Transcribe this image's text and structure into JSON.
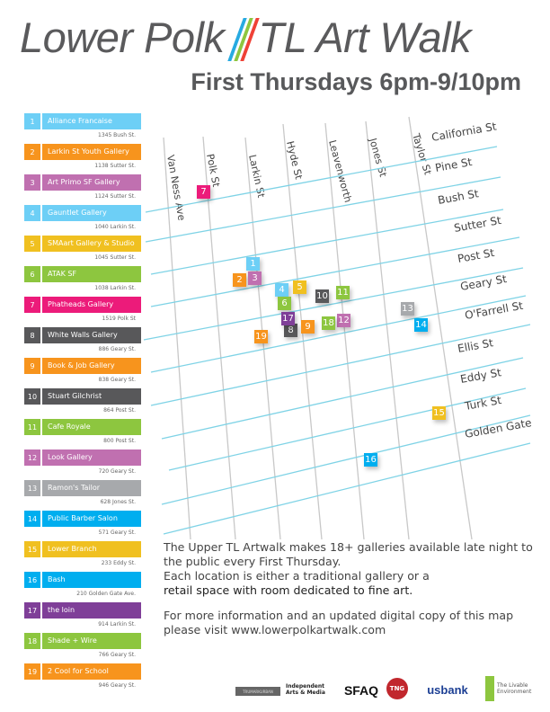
{
  "header": {
    "title_left": "Lower Polk",
    "title_right": "TL Art Walk",
    "slash_colors": [
      "#27aae1",
      "#8dc63f",
      "#ef4136"
    ],
    "subtitle": "First Thursdays 6pm-9/10pm"
  },
  "galleries": [
    {
      "num": "1",
      "name": "Alliance Francaise",
      "address": "1345 Bush St.",
      "color": "#6dcff6"
    },
    {
      "num": "2",
      "name": "Larkin St Youth Gallery",
      "address": "1138 Sutter St.",
      "color": "#f7941d"
    },
    {
      "num": "3",
      "name": "Art Primo SF Gallery",
      "address": "1124 Sutter St.",
      "color": "#c070b0"
    },
    {
      "num": "4",
      "name": "Gauntlet Gallery",
      "address": "1040 Larkin St.",
      "color": "#6dcff6"
    },
    {
      "num": "5",
      "name": "SMAart Gallery & Studio",
      "address": "1045 Sutter St.",
      "color": "#f0c020"
    },
    {
      "num": "6",
      "name": "ATAK SF",
      "address": "1038 Larkin St.",
      "color": "#8dc63f"
    },
    {
      "num": "7",
      "name": "Phatheads Gallery",
      "address": "1519 Polk St",
      "color": "#ec1b7a"
    },
    {
      "num": "8",
      "name": "White Walls Gallery",
      "address": "886 Geary St.",
      "color": "#58585a"
    },
    {
      "num": "9",
      "name": "Book & Job Gallery",
      "address": "838 Geary St.",
      "color": "#f7941d"
    },
    {
      "num": "10",
      "name": "Stuart Gilchrist",
      "address": "864 Post St.",
      "color": "#58585a"
    },
    {
      "num": "11",
      "name": "Cafe Royale",
      "address": "800 Post St.",
      "color": "#8dc63f"
    },
    {
      "num": "12",
      "name": "Look Gallery",
      "address": "720 Geary St.",
      "color": "#c070b0"
    },
    {
      "num": "13",
      "name": "Ramon's Tailor",
      "address": "628 Jones St.",
      "color": "#a7a9ac"
    },
    {
      "num": "14",
      "name": "Public Barber Salon",
      "address": "571 Geary St.",
      "color": "#00aeef"
    },
    {
      "num": "15",
      "name": "Lower Branch",
      "address": "233 Eddy St.",
      "color": "#f0c020"
    },
    {
      "num": "16",
      "name": "Bash",
      "address": "210 Golden Gate Ave.",
      "color": "#00aeef"
    },
    {
      "num": "17",
      "name": "the loin",
      "address": "914 Larkin St.",
      "color": "#7f3f98"
    },
    {
      "num": "18",
      "name": "Shade + Wire",
      "address": "766 Geary St.",
      "color": "#8dc63f"
    },
    {
      "num": "19",
      "name": "2 Cool for School",
      "address": "946 Geary St.",
      "color": "#f7941d"
    }
  ],
  "map": {
    "street_color": "#7fd3e6",
    "avenue_color": "#c8c8c8",
    "avenues": [
      "Van Ness Ave",
      "Polk St",
      "Larkin St",
      "Hyde St",
      "Leavenworth",
      "Jones St",
      "Taylor St"
    ],
    "streets": [
      "California St",
      "Pine St",
      "Bush St",
      "Sutter St",
      "Post St",
      "Geary St",
      "O'Farrell St",
      "Ellis St",
      "Eddy St",
      "Turk St",
      "Golden Gate"
    ]
  },
  "info": {
    "line1": "The Upper TL Artwalk makes 18+ galleries available late night to the public every First Thursday.",
    "line2": "Each location is either a traditional gallery or a",
    "line3": "retail space with room dedicated to fine art.",
    "more": "For more information and an updated digital copy of this map please visit www.lowerpolkartwalk.com"
  },
  "sponsors": [
    "TRUMARKURBAN",
    "Independent Arts & Media",
    "SFAQ",
    "TNG",
    "usbank",
    "The Livable Environment"
  ]
}
